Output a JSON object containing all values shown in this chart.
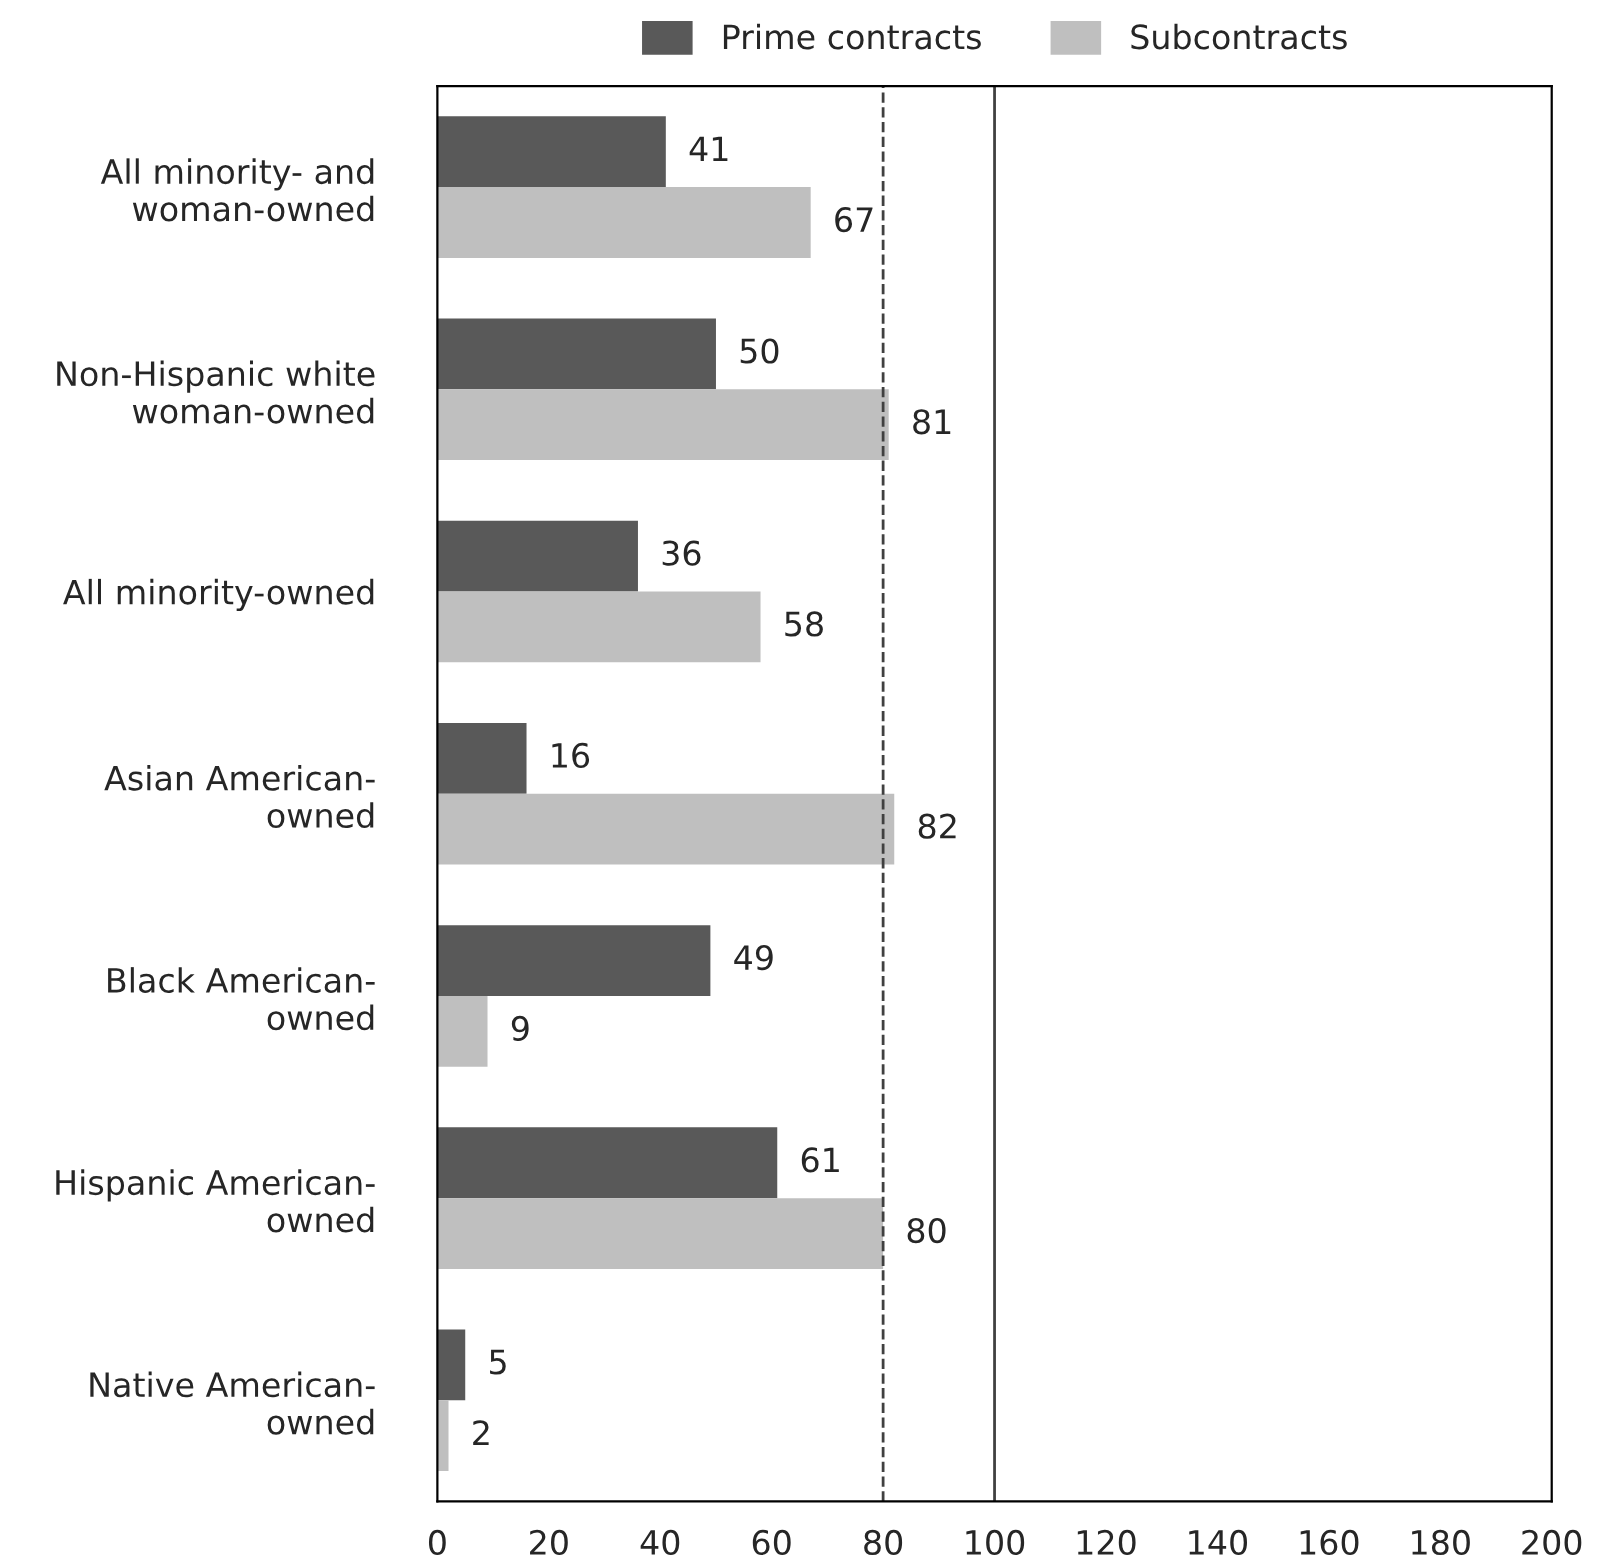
{
  "chart_data": {
    "type": "bar",
    "orientation": "horizontal",
    "categories": [
      "All minority- and\nwoman-owned",
      "Non-Hispanic white\nwoman-owned",
      "All minority-owned",
      "Asian American-\nowned",
      "Black American-\nowned",
      "Hispanic American-\nowned",
      "Native American-\nowned"
    ],
    "series": [
      {
        "name": "Prime contracts",
        "color": "#595959",
        "values": [
          41,
          50,
          36,
          16,
          49,
          61,
          5
        ]
      },
      {
        "name": "Subcontracts",
        "color": "#bfbfbf",
        "values": [
          67,
          81,
          58,
          82,
          9,
          80,
          2
        ]
      }
    ],
    "xlim": [
      0,
      200
    ],
    "xticks": [
      0,
      20,
      40,
      60,
      80,
      100,
      120,
      140,
      160,
      180,
      200
    ],
    "ref_lines": [
      {
        "axis": "x",
        "value": 80,
        "color": "#404040",
        "line_style": "dashed"
      },
      {
        "axis": "x",
        "value": 100,
        "color": "#404040",
        "line_style": "solid"
      }
    ],
    "data_labels": true,
    "legend": "top",
    "grid": false
  }
}
